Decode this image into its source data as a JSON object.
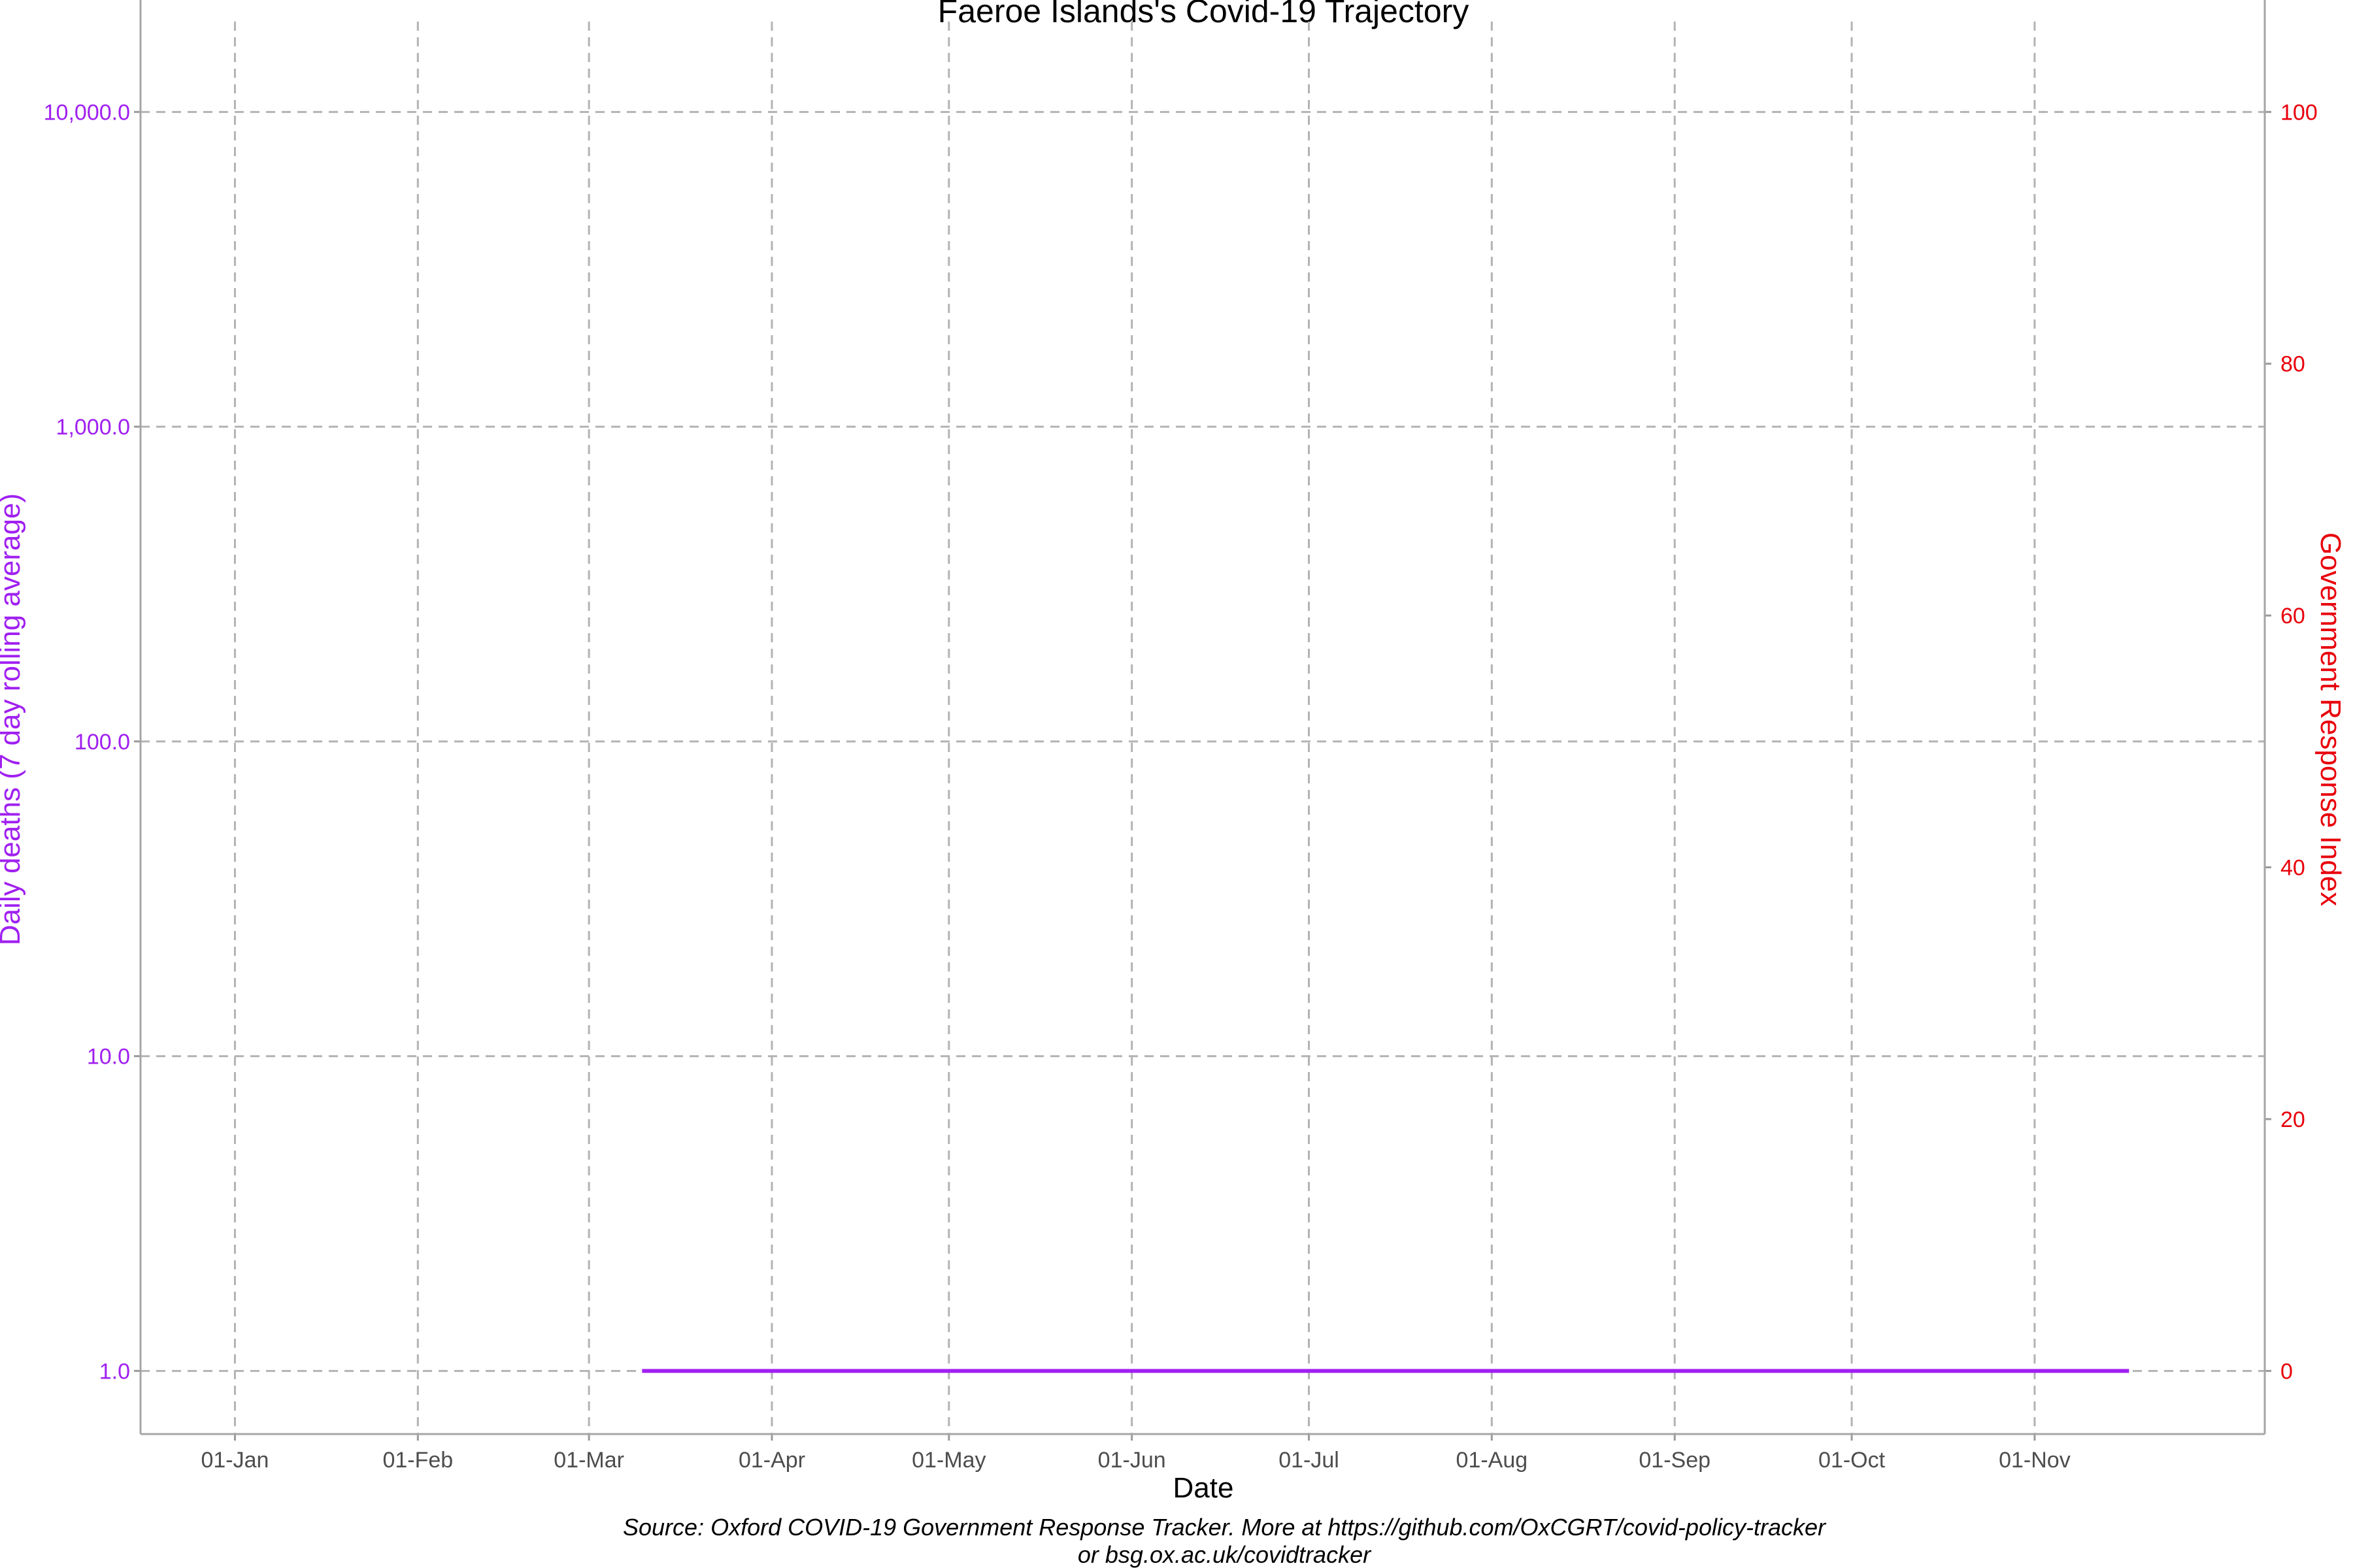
{
  "chart_data": {
    "type": "line",
    "title": "Faeroe Islands's Covid-19 Trajectory",
    "xlabel": "Date",
    "ylabel_left": "Daily deaths (7 day rolling average)",
    "ylabel_right": "Government Response Index",
    "caption_line1": "Source: Oxford COVID-19 Government Response Tracker. More at https://github.com/OxCGRT/covid-policy-tracker",
    "caption_line2": "or bsg.ox.ac.uk/covidtracker",
    "x_ticks": [
      {
        "label": "01-Jan",
        "date": "2020-01-01"
      },
      {
        "label": "01-Feb",
        "date": "2020-02-01"
      },
      {
        "label": "01-Mar",
        "date": "2020-03-01"
      },
      {
        "label": "01-Apr",
        "date": "2020-04-01"
      },
      {
        "label": "01-May",
        "date": "2020-05-01"
      },
      {
        "label": "01-Jun",
        "date": "2020-06-01"
      },
      {
        "label": "01-Jul",
        "date": "2020-07-01"
      },
      {
        "label": "01-Aug",
        "date": "2020-08-01"
      },
      {
        "label": "01-Sep",
        "date": "2020-09-01"
      },
      {
        "label": "01-Oct",
        "date": "2020-10-01"
      },
      {
        "label": "01-Nov",
        "date": "2020-11-01"
      }
    ],
    "xlim": [
      "2019-12-16",
      "2020-12-10"
    ],
    "y_left": {
      "scale": "log10",
      "ylim": [
        0.63,
        16000
      ],
      "ticks": [
        1,
        10,
        100,
        1000,
        10000
      ],
      "tick_labels": [
        "1.0",
        "10.0",
        "100.0",
        "1,000.0",
        "10,000.0"
      ],
      "color": "#a020f0"
    },
    "y_right": {
      "scale": "linear",
      "ticks": [
        0,
        20,
        40,
        60,
        80,
        100
      ],
      "tick_labels": [
        "0",
        "20",
        "40",
        "60",
        "80",
        "100"
      ],
      "color": "#e8000b"
    },
    "grid": true,
    "series": [
      {
        "axis": "left",
        "color": "#a020f0",
        "points": [
          {
            "date": "2020-03-10",
            "value": 1.0
          },
          {
            "date": "2020-11-17",
            "value": 1.0
          }
        ]
      }
    ]
  }
}
